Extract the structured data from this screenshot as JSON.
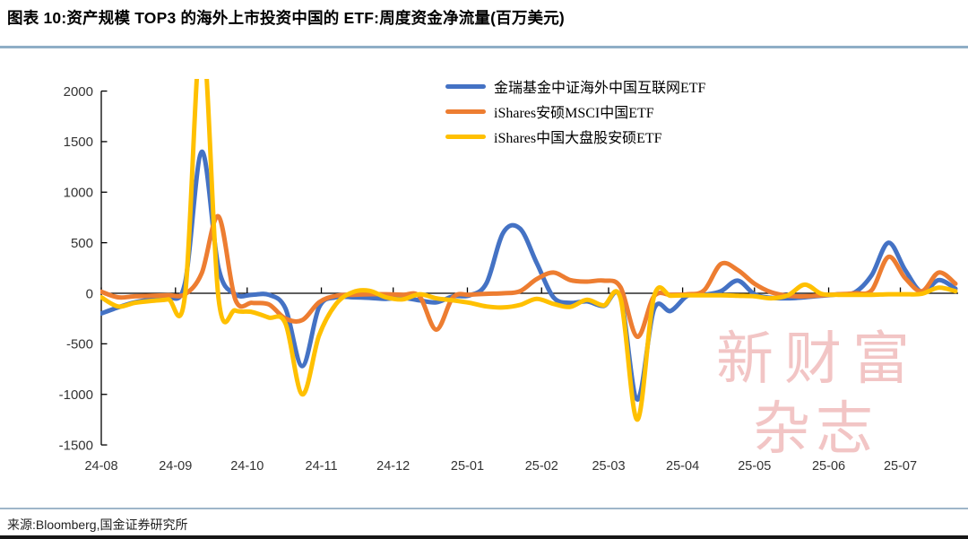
{
  "page": {
    "title": "图表 10:资产规模 TOP3 的海外上市投资中国的 ETF:周度资金净流量(百万美元)",
    "source": "来源:Bloomberg,国金证券研究所",
    "watermark_line1": "新财富",
    "watermark_line2": "杂志",
    "watermark_color": "#F2C5C5",
    "rule_color": "#8FAEC6"
  },
  "chart_data": {
    "type": "line",
    "title": "图表 10:资产规模 TOP3 的海外上市投资中国的 ETF:周度资金净流量(百万美元)",
    "ylabel": "周度资金净流量(百万美元)",
    "xlabel": "",
    "x_unit": "week",
    "weeks_total": 52,
    "x_tick_labels": [
      "24-08",
      "24-09",
      "24-10",
      "24-11",
      "24-12",
      "25-01",
      "25-02",
      "25-03",
      "25-04",
      "25-05",
      "25-06",
      "25-07"
    ],
    "month_start_weeks": [
      0,
      4.43,
      8.71,
      13.14,
      17.43,
      21.86,
      26.29,
      30.29,
      34.71,
      39.0,
      43.43,
      47.71
    ],
    "ylim": [
      -1500,
      2000
    ],
    "y_ticks": [
      2000,
      1500,
      1000,
      500,
      0,
      -500,
      -1000,
      -1500
    ],
    "grid": false,
    "legend_position": "top-center",
    "axis_color": "#000000",
    "tick_label_color": "#333333",
    "series": [
      {
        "name": "金瑞基金中证海外中国互联网ETF",
        "color": "#4472C4",
        "values": [
          -200,
          -140,
          -90,
          -60,
          -45,
          100,
          1400,
          250,
          -10,
          -15,
          -15,
          -150,
          -720,
          -140,
          -40,
          -40,
          -45,
          -55,
          -45,
          -70,
          -90,
          -30,
          -20,
          100,
          600,
          640,
          300,
          -40,
          -95,
          -80,
          -125,
          -40,
          -1050,
          -160,
          -175,
          -25,
          -15,
          20,
          125,
          -10,
          -45,
          -50,
          -40,
          -25,
          -10,
          10,
          180,
          500,
          230,
          10,
          130,
          45
        ]
      },
      {
        "name": "iShares安硕MSCI中国ETF",
        "color": "#ED7D31",
        "values": [
          15,
          -40,
          -30,
          -25,
          -20,
          -10,
          200,
          760,
          -60,
          -95,
          -110,
          -250,
          -265,
          -90,
          -25,
          -15,
          -10,
          -10,
          -15,
          -30,
          -360,
          -40,
          -15,
          -5,
          0,
          20,
          140,
          205,
          130,
          115,
          125,
          60,
          -430,
          -30,
          -15,
          -10,
          30,
          290,
          230,
          95,
          10,
          -25,
          -30,
          -20,
          -10,
          0,
          30,
          360,
          150,
          20,
          205,
          95
        ]
      },
      {
        "name": "iShares中国大盘股安硕ETF",
        "color": "#FFC000",
        "values": [
          -40,
          -130,
          -95,
          -75,
          -60,
          -20,
          2600,
          -50,
          -170,
          -185,
          -240,
          -300,
          -1000,
          -420,
          -110,
          10,
          25,
          -40,
          -60,
          -10,
          -50,
          -70,
          -95,
          -130,
          -140,
          -115,
          -55,
          -105,
          -135,
          -65,
          -120,
          -50,
          -1250,
          -35,
          -25,
          -20,
          -20,
          -20,
          -25,
          -30,
          -50,
          -20,
          85,
          -5,
          -15,
          -15,
          -15,
          -10,
          -10,
          -5,
          55,
          20
        ]
      }
    ]
  }
}
